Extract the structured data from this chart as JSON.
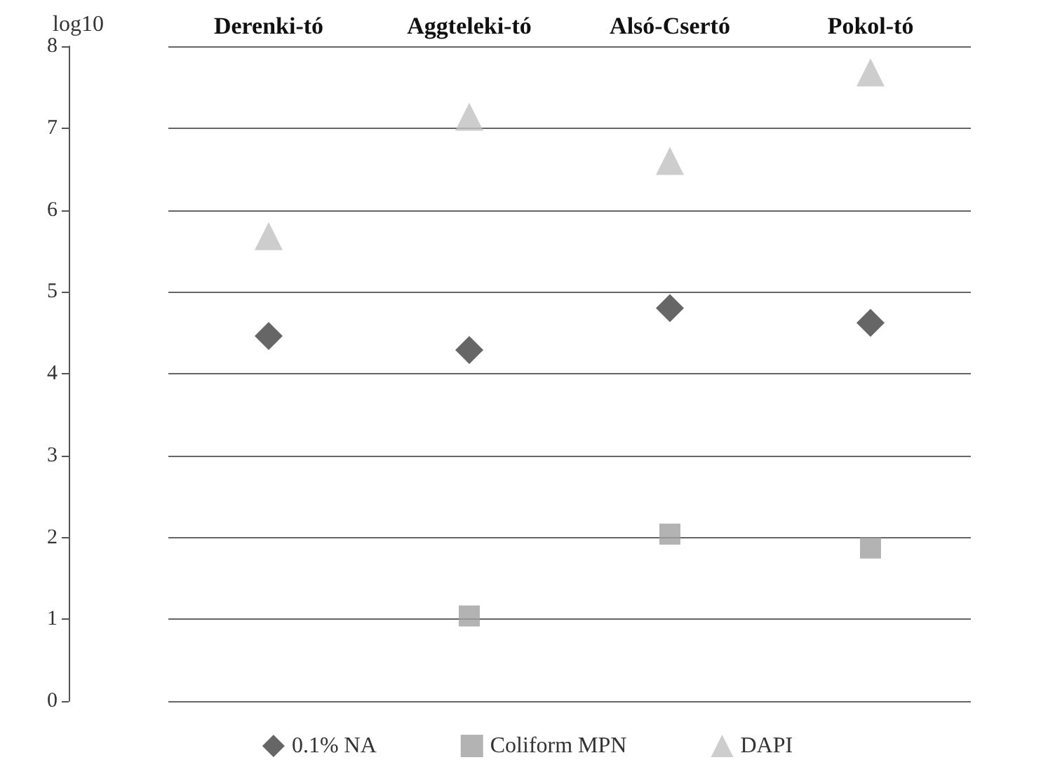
{
  "chart_data": {
    "type": "scatter",
    "ylabel": "log10",
    "categories": [
      "Derenki-tó",
      "Aggteleki-tó",
      "Alsó-Csertó",
      "Pokol-tó"
    ],
    "series": [
      {
        "name": "0.1% NA",
        "color": "#404040",
        "marker": "diamond",
        "values": [
          4.46,
          4.29,
          4.8,
          4.62
        ]
      },
      {
        "name": "Coliform MPN",
        "color": "#a0a0a0",
        "marker": "square",
        "values": [
          null,
          1.04,
          2.04,
          1.87
        ]
      },
      {
        "name": "DAPI",
        "color": "#c0c0c0",
        "marker": "triangle",
        "values": [
          5.68,
          7.14,
          6.6,
          7.68
        ]
      }
    ],
    "ylim": [
      0,
      8
    ],
    "yticks": [
      0,
      1,
      2,
      3,
      4,
      5,
      6,
      7,
      8
    ],
    "grid": "y",
    "legend": "bottom"
  }
}
